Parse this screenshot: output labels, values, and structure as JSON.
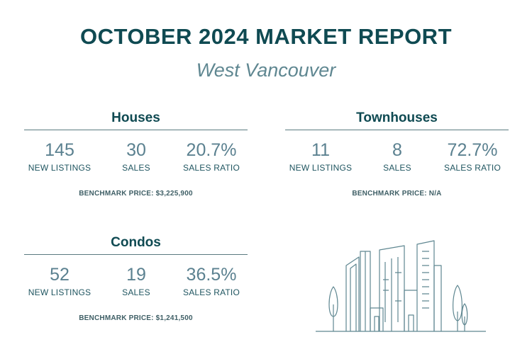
{
  "report": {
    "title": "OCTOBER 2024 MARKET REPORT",
    "subtitle": "West Vancouver"
  },
  "houses": {
    "title": "Houses",
    "new_listings": "145",
    "new_listings_label": "NEW LISTINGS",
    "sales": "30",
    "sales_label": "SALES",
    "sales_ratio": "20.7%",
    "sales_ratio_label": "SALES RATIO",
    "benchmark": "BENCHMARK PRICE: $3,225,900"
  },
  "townhouses": {
    "title": "Townhouses",
    "new_listings": "11",
    "new_listings_label": "NEW LISTINGS",
    "sales": "8",
    "sales_label": "SALES",
    "sales_ratio": "72.7%",
    "sales_ratio_label": "SALES RATIO",
    "benchmark": "BENCHMARK PRICE: N/A"
  },
  "condos": {
    "title": "Condos",
    "new_listings": "52",
    "new_listings_label": "NEW LISTINGS",
    "sales": "19",
    "sales_label": "SALES",
    "sales_ratio": "36.5%",
    "sales_ratio_label": "SALES RATIO",
    "benchmark": "BENCHMARK PRICE: $1,241,500"
  },
  "illustration": {
    "icon": "city-skyline-icon",
    "line_color": "#5f8791"
  }
}
